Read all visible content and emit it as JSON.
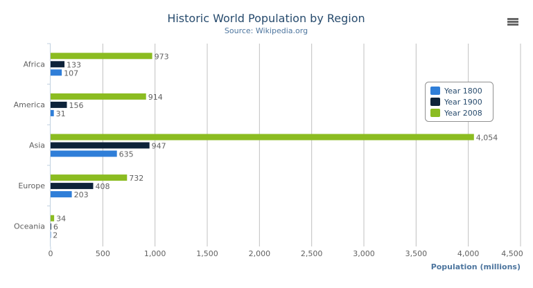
{
  "chart_data": {
    "type": "bar",
    "orientation": "horizontal",
    "title": "Historic World Population by Region",
    "subtitle": "Source: Wikipedia.org",
    "xlabel": "",
    "ylabel": "Population (millions)",
    "categories": [
      "Africa",
      "America",
      "Asia",
      "Europe",
      "Oceania"
    ],
    "series": [
      {
        "name": "Year 1800",
        "color": "#2f7ed8",
        "values": [
          107,
          31,
          635,
          203,
          2
        ]
      },
      {
        "name": "Year 1900",
        "color": "#0d233a",
        "values": [
          133,
          156,
          947,
          408,
          6
        ]
      },
      {
        "name": "Year 2008",
        "color": "#8bbc21",
        "values": [
          973,
          914,
          4054,
          732,
          34
        ]
      }
    ],
    "ylim": [
      0,
      4500
    ],
    "ticks": [
      "0",
      "500",
      "1,000",
      "1,500",
      "2,000",
      "2,500",
      "3,000",
      "3,500",
      "4,000",
      "4,500"
    ],
    "grid": true,
    "data_labels": true,
    "legend_placement": "right"
  },
  "menu_icon": "hamburger-menu-icon"
}
